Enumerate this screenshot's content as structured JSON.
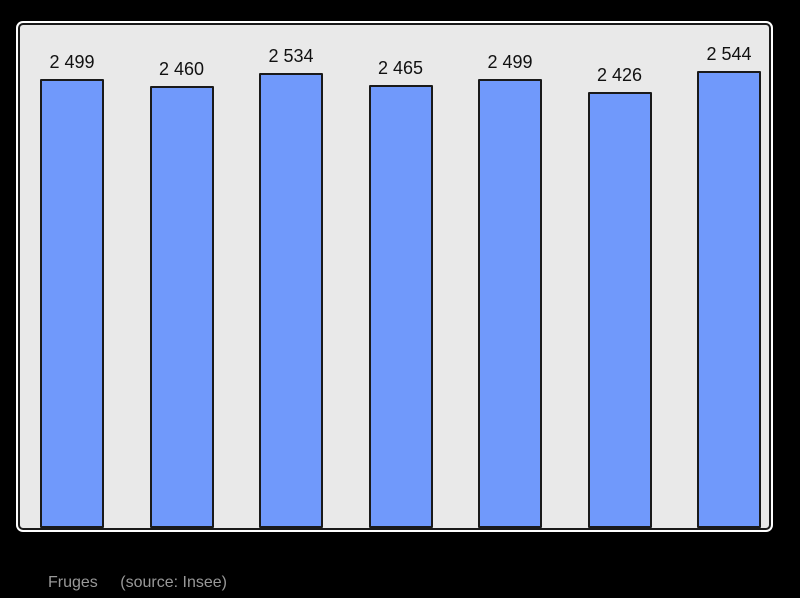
{
  "page": {
    "background_color": "#000000"
  },
  "panel": {
    "background_color": "#e9e9e9",
    "border_color": "#1a1a1a",
    "outline_color": "#ffffff"
  },
  "caption": {
    "title": "Fruges",
    "source_note": "(source: Insee)",
    "text_color": "#999999"
  },
  "chart_data": {
    "type": "bar",
    "values": [
      2499,
      2460,
      2534,
      2465,
      2499,
      2426,
      2544
    ],
    "value_labels": [
      "2 499",
      "2 460",
      "2 534",
      "2 465",
      "2 499",
      "2 426",
      "2 544"
    ],
    "title": "Fruges",
    "source_note": "(source: Insee)",
    "xlabel": "",
    "ylabel": "",
    "ylim": [
      0,
      2800
    ],
    "grid": false,
    "legend": "none",
    "bar_color": "#7099fb",
    "bar_border_color": "#1a1a1a",
    "value_label_color": "#111111"
  }
}
